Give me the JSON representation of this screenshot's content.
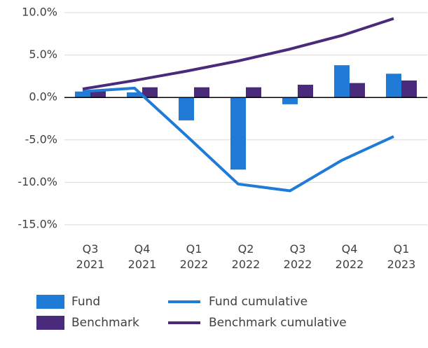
{
  "chart_data": {
    "type": "bar",
    "categories": [
      "Q3 2021",
      "Q4 2021",
      "Q1 2022",
      "Q2 2022",
      "Q3 2022",
      "Q4 2022",
      "Q1 2023"
    ],
    "series": [
      {
        "name": "Fund",
        "color": "#1f7bd6",
        "kind": "bar",
        "values": [
          0.7,
          0.6,
          -2.7,
          -8.5,
          -0.8,
          3.8,
          2.8
        ]
      },
      {
        "name": "Benchmark",
        "color": "#4a2a7a",
        "kind": "bar",
        "values": [
          0.8,
          1.2,
          1.2,
          1.2,
          1.5,
          1.7,
          2.0
        ]
      },
      {
        "name": "Fund cumulative",
        "color": "#1f7bd6",
        "kind": "line",
        "values": [
          0.7,
          1.1,
          -4.5,
          -10.2,
          -11.0,
          -7.4,
          -4.6
        ]
      },
      {
        "name": "Benchmark cumulative",
        "color": "#4a2a7a",
        "kind": "line",
        "values": [
          1.0,
          2.0,
          3.1,
          4.3,
          5.7,
          7.3,
          9.3
        ]
      }
    ],
    "ylim": [
      -15,
      10
    ],
    "yticks": [
      {
        "value": -15,
        "label": "-15.0%"
      },
      {
        "value": -10,
        "label": "-10.0%"
      },
      {
        "value": -5,
        "label": "-5.0%"
      },
      {
        "value": 0,
        "label": "0.0%"
      },
      {
        "value": 5,
        "label": "5.0%"
      },
      {
        "value": 10,
        "label": "10.0%"
      }
    ],
    "grid": true
  }
}
